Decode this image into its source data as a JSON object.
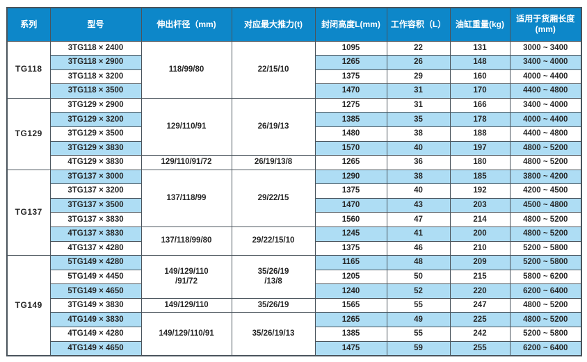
{
  "colors": {
    "header_bg": "#0d87c9",
    "stripe_bg": "#aeddf4",
    "border": "#4a545c",
    "text": "#262626",
    "header_text": "#ffffff"
  },
  "chart_data": {
    "type": "table",
    "title": "",
    "columns": [
      "系列",
      "型号",
      "伸出杆径（mm)",
      "对应最大推力(t)",
      "封闭高度L(mm)",
      "工作容积（L）",
      "油缸重量(kg)",
      "适用于货厢长度\n(mm)"
    ],
    "groups": [
      {
        "series": "TG118",
        "rows": [
          {
            "model": "3TG118 × 2400",
            "rod": {
              "v": "118/99/80",
              "span": 4
            },
            "thrust": {
              "v": "22/15/10",
              "span": 4
            },
            "height": "1095",
            "volume": "22",
            "weight": "131",
            "range": "3000 ~ 3400"
          },
          {
            "model": "3TG118 × 2900",
            "height": "1265",
            "volume": "26",
            "weight": "148",
            "range": "3400 ~ 4000"
          },
          {
            "model": "3TG118 × 3200",
            "height": "1375",
            "volume": "29",
            "weight": "160",
            "range": "4000 ~ 4400"
          },
          {
            "model": "3TG118 × 3500",
            "height": "1470",
            "volume": "31",
            "weight": "170",
            "range": "4400 ~ 4800"
          }
        ]
      },
      {
        "series": "TG129",
        "rows": [
          {
            "model": "3TG129 × 2900",
            "rod": {
              "v": "129/110/91",
              "span": 4
            },
            "thrust": {
              "v": "26/19/13",
              "span": 4
            },
            "height": "1275",
            "volume": "31",
            "weight": "166",
            "range": "3400 ~ 4000"
          },
          {
            "model": "3TG129 × 3200",
            "height": "1385",
            "volume": "35",
            "weight": "178",
            "range": "4000 ~ 4400"
          },
          {
            "model": "3TG129 × 3500",
            "height": "1480",
            "volume": "38",
            "weight": "188",
            "range": "4400 ~ 4800"
          },
          {
            "model": "3TG129 × 3830",
            "height": "1570",
            "volume": "40",
            "weight": "197",
            "range": "4800 ~ 5200"
          },
          {
            "model": "4TG129 × 3830",
            "rod": {
              "v": "129/110/91/72",
              "span": 1
            },
            "thrust": {
              "v": "26/19/13/8",
              "span": 1
            },
            "height": "1265",
            "volume": "36",
            "weight": "180",
            "range": "4800 ~ 5200"
          }
        ]
      },
      {
        "series": "TG137",
        "rows": [
          {
            "model": "3TG137 × 3000",
            "rod": {
              "v": "137/118/99",
              "span": 4
            },
            "thrust": {
              "v": "29/22/15",
              "span": 4
            },
            "height": "1290",
            "volume": "38",
            "weight": "185",
            "range": "3800 ~ 4200"
          },
          {
            "model": "3TG137 × 3200",
            "height": "1375",
            "volume": "40",
            "weight": "192",
            "range": "4200 ~ 4500"
          },
          {
            "model": "3TG137 × 3500",
            "height": "1470",
            "volume": "43",
            "weight": "203",
            "range": "4500 ~ 4800"
          },
          {
            "model": "3TG137 × 3830",
            "height": "1560",
            "volume": "47",
            "weight": "214",
            "range": "4800 ~ 5200"
          },
          {
            "model": "4TG137 × 3830",
            "rod": {
              "v": "137/118/99/80",
              "span": 2
            },
            "thrust": {
              "v": "29/22/15/10",
              "span": 2
            },
            "height": "1245",
            "volume": "41",
            "weight": "200",
            "range": "4800 ~ 5200"
          },
          {
            "model": "4TG137 × 4280",
            "height": "1375",
            "volume": "46",
            "weight": "210",
            "range": "5200 ~ 5800"
          }
        ]
      },
      {
        "series": "TG149",
        "rows": [
          {
            "model": "5TG149 × 4280",
            "rod": {
              "v": "149/129/110\n/91/72",
              "span": 3
            },
            "thrust": {
              "v": "35/26/19\n/13/8",
              "span": 3
            },
            "height": "1165",
            "volume": "48",
            "weight": "209",
            "range": "5200 ~ 5800"
          },
          {
            "model": "5TG149 × 4450",
            "height": "1205",
            "volume": "50",
            "weight": "215",
            "range": "5800 ~ 6200"
          },
          {
            "model": "5TG149 × 4650",
            "height": "1240",
            "volume": "52",
            "weight": "220",
            "range": "6200 ~ 6400"
          },
          {
            "model": "3TG149 × 3830",
            "rod": {
              "v": "149/129/110",
              "span": 1
            },
            "thrust": {
              "v": "35/26/19",
              "span": 1
            },
            "height": "1565",
            "volume": "55",
            "weight": "247",
            "range": "4800 ~ 5200"
          },
          {
            "model": "4TG149 × 3830",
            "rod": {
              "v": "149/129/110/91",
              "span": 3
            },
            "thrust": {
              "v": "35/26/19/13",
              "span": 3
            },
            "height": "1265",
            "volume": "49",
            "weight": "225",
            "range": "4800 ~ 5200"
          },
          {
            "model": "4TG149 × 4280",
            "height": "1385",
            "volume": "55",
            "weight": "242",
            "range": "5200 ~ 5800"
          },
          {
            "model": "4TG149 × 4650",
            "height": "1475",
            "volume": "59",
            "weight": "255",
            "range": "6200 ~ 6400"
          }
        ]
      }
    ]
  }
}
